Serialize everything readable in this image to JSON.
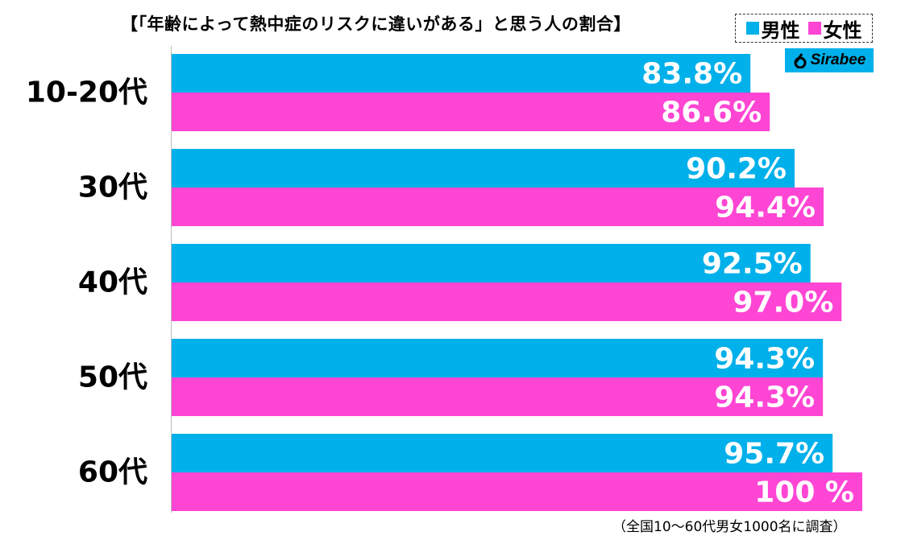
{
  "title": "【「年齢によって熱中症のリスクに違いがある」と思う人の割合】",
  "legend": {
    "male": "男性",
    "female": "女性"
  },
  "brand": "Sirabee",
  "footnote": "（全国10〜60代男女1000名に調査）",
  "colors": {
    "male": "#00b0ea",
    "female": "#ff45d4",
    "axis": "#bbbbbb",
    "label_text": "#ffffff"
  },
  "chart_data": {
    "type": "bar",
    "orientation": "horizontal",
    "categories": [
      "10-20代",
      "30代",
      "40代",
      "50代",
      "60代"
    ],
    "series": [
      {
        "name": "男性",
        "values": [
          83.8,
          90.2,
          92.5,
          94.3,
          95.7
        ],
        "labels": [
          "83.8%",
          "90.2%",
          "92.5%",
          "94.3%",
          "95.7%"
        ]
      },
      {
        "name": "女性",
        "values": [
          86.6,
          94.4,
          97.0,
          94.3,
          100
        ],
        "labels": [
          "86.6%",
          "94.4%",
          "97.0%",
          "94.3%",
          "100 %"
        ]
      }
    ],
    "xlim": [
      0,
      100
    ],
    "grid": false,
    "legend_position": "top-right"
  }
}
